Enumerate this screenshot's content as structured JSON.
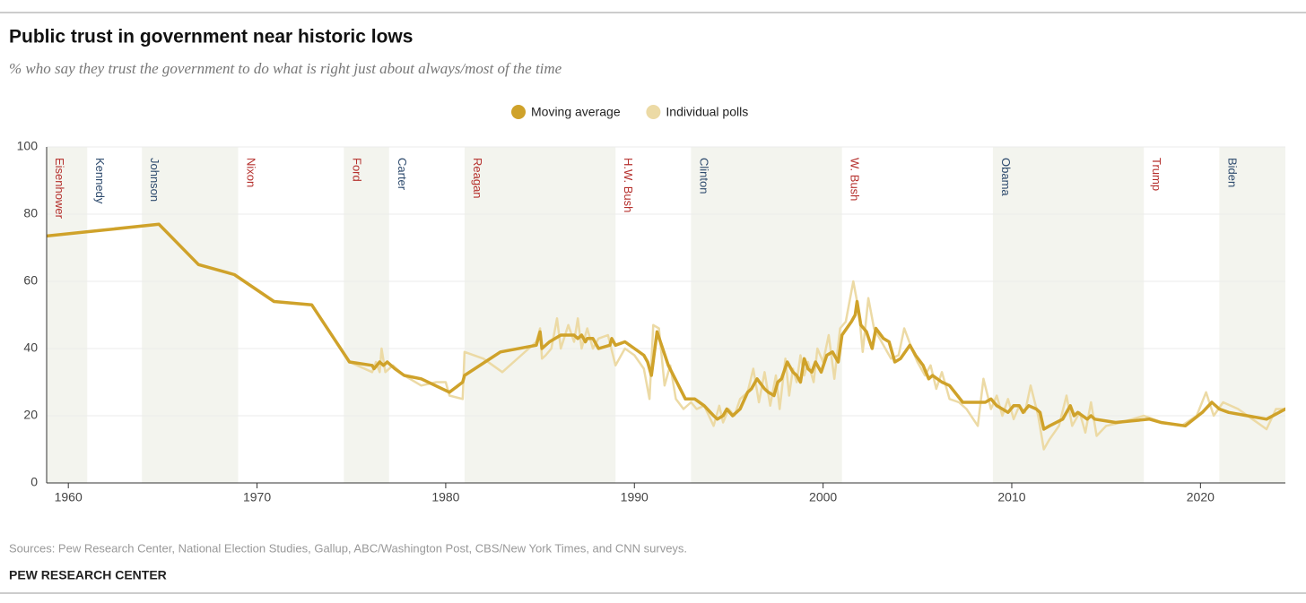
{
  "chart_data": {
    "type": "line",
    "title": "Public trust in government near historic lows",
    "subtitle": "% who say they trust the government to do what is right just about always/most of the time",
    "source": "Sources: Pew Research Center, National Election Studies, Gallup, ABC/Washington Post, CBS/New York Times, and CNN surveys.",
    "credit": "PEW RESEARCH CENTER",
    "xlim": [
      1958.85,
      2024.5
    ],
    "xticks": [
      1960,
      1970,
      1980,
      1990,
      2000,
      2010,
      2020
    ],
    "ylim": [
      0,
      100
    ],
    "yticks": [
      0,
      20,
      40,
      60,
      80,
      100
    ],
    "grid": true,
    "legend": "top",
    "presidents": [
      {
        "name": "Eisenhower",
        "start": 1953,
        "end": 1961,
        "color": "#b5302d",
        "shaded": true
      },
      {
        "name": "Kennedy",
        "start": 1961,
        "end": 1963.9,
        "color": "#2d4a6d",
        "shaded": false
      },
      {
        "name": "Johnson",
        "start": 1963.9,
        "end": 1969,
        "color": "#2d4a6d",
        "shaded": true
      },
      {
        "name": "Nixon",
        "start": 1969,
        "end": 1974.6,
        "color": "#b5302d",
        "shaded": false
      },
      {
        "name": "Ford",
        "start": 1974.6,
        "end": 1977,
        "color": "#b5302d",
        "shaded": true
      },
      {
        "name": "Carter",
        "start": 1977,
        "end": 1981,
        "color": "#2d4a6d",
        "shaded": false
      },
      {
        "name": "Reagan",
        "start": 1981,
        "end": 1989,
        "color": "#b5302d",
        "shaded": true
      },
      {
        "name": "H.W. Bush",
        "start": 1989,
        "end": 1993,
        "color": "#b5302d",
        "shaded": false
      },
      {
        "name": "Clinton",
        "start": 1993,
        "end": 2001,
        "color": "#2d4a6d",
        "shaded": true
      },
      {
        "name": "W. Bush",
        "start": 2001,
        "end": 2009,
        "color": "#b5302d",
        "shaded": false
      },
      {
        "name": "Obama",
        "start": 2009,
        "end": 2017,
        "color": "#2d4a6d",
        "shaded": true
      },
      {
        "name": "Trump",
        "start": 2017,
        "end": 2021,
        "color": "#b5302d",
        "shaded": false
      },
      {
        "name": "Biden",
        "start": 2021,
        "end": 2025,
        "color": "#2d4a6d",
        "shaded": true
      }
    ],
    "series": [
      {
        "name": "Moving average",
        "color": "#cfa22a",
        "x": [
          1958,
          1964.8,
          1966.9,
          1968.8,
          1970.9,
          1972.9,
          1974.9,
          1976.1,
          1976.2,
          1976.5,
          1976.7,
          1976.9,
          1977.3,
          1977.8,
          1978.7,
          1980.2,
          1980.9,
          1981.0,
          1982.9,
          1984.8,
          1985.0,
          1985.1,
          1985.5,
          1986.1,
          1986.8,
          1987.0,
          1987.2,
          1987.4,
          1987.5,
          1987.8,
          1988.1,
          1988.7,
          1988.8,
          1989.0,
          1989.5,
          1990.0,
          1990.5,
          1990.7,
          1990.9,
          1991.2,
          1991.8,
          1992.7,
          1993.2,
          1993.7,
          1994.2,
          1994.4,
          1994.7,
          1994.9,
          1995.2,
          1995.4,
          1995.6,
          1996.0,
          1996.2,
          1996.5,
          1996.9,
          1997.1,
          1997.4,
          1997.6,
          1997.8,
          1998.1,
          1998.4,
          1998.6,
          1998.8,
          1999.0,
          1999.2,
          1999.4,
          1999.6,
          1999.9,
          2000.2,
          2000.5,
          2000.8,
          2001.0,
          2001.5,
          2001.7,
          2001.8,
          2002.0,
          2002.3,
          2002.6,
          2002.8,
          2003.2,
          2003.5,
          2003.8,
          2004.1,
          2004.6,
          2004.9,
          2005.3,
          2005.6,
          2005.8,
          2006.3,
          2006.7,
          2007.4,
          2007.9,
          2008.6,
          2008.9,
          2009.2,
          2009.5,
          2009.8,
          2010.1,
          2010.4,
          2010.6,
          2010.9,
          2011.3,
          2011.5,
          2011.7,
          2012.0,
          2012.7,
          2012.8,
          2013.1,
          2013.3,
          2013.5,
          2014.0,
          2014.2,
          2014.4,
          2015.5,
          2017.3,
          2017.9,
          2019.2,
          2020.1,
          2020.6,
          2021.0,
          2021.5,
          2023.5,
          2024.5
        ],
        "values": [
          73,
          77,
          65,
          62,
          54,
          53,
          36,
          35,
          34,
          36,
          35,
          36,
          34,
          32,
          31,
          27,
          30,
          32,
          39,
          41,
          45,
          40,
          42,
          44,
          44,
          43,
          44,
          42,
          43,
          43,
          40,
          41,
          43,
          41,
          42,
          40,
          38,
          36,
          32,
          45,
          35,
          25,
          25,
          23,
          20,
          19,
          20,
          22,
          20,
          21,
          22,
          27,
          28,
          31,
          28,
          27,
          26,
          30,
          31,
          36,
          33,
          32,
          30,
          37,
          34,
          33,
          36,
          33,
          38,
          39,
          36,
          44,
          48,
          50,
          54,
          47,
          45,
          40,
          46,
          43,
          42,
          36,
          37,
          41,
          38,
          35,
          31,
          32,
          30,
          29,
          24,
          24,
          24,
          25,
          23,
          22,
          21,
          23,
          23,
          21,
          23,
          22,
          21,
          16,
          17,
          19,
          20,
          23,
          20,
          21,
          19,
          20,
          19,
          18,
          19,
          18,
          17,
          21,
          24,
          22,
          21,
          19,
          22
        ]
      },
      {
        "name": "Individual polls",
        "color": "#ecdaa5",
        "x": [
          1958,
          1964.8,
          1966.9,
          1968.8,
          1970.9,
          1972.9,
          1974.9,
          1976.1,
          1976.3,
          1976.5,
          1976.6,
          1976.8,
          1977.2,
          1977.8,
          1978.7,
          1979.5,
          1980.0,
          1980.2,
          1980.9,
          1981.0,
          1982.0,
          1983.0,
          1984.0,
          1984.8,
          1985.0,
          1985.1,
          1985.3,
          1985.6,
          1985.9,
          1986.1,
          1986.5,
          1986.8,
          1987.0,
          1987.2,
          1987.5,
          1987.8,
          1988.1,
          1988.6,
          1989.0,
          1989.5,
          1990.0,
          1990.5,
          1990.8,
          1991.0,
          1991.3,
          1991.6,
          1991.9,
          1992.2,
          1992.6,
          1993.0,
          1993.3,
          1993.7,
          1994.2,
          1994.5,
          1994.7,
          1995.0,
          1995.3,
          1995.6,
          1996.0,
          1996.3,
          1996.6,
          1996.9,
          1997.2,
          1997.5,
          1997.7,
          1998.0,
          1998.2,
          1998.4,
          1998.6,
          1998.8,
          1999.0,
          1999.2,
          1999.5,
          1999.7,
          2000.0,
          2000.3,
          2000.6,
          2000.9,
          2001.2,
          2001.6,
          2001.9,
          2002.1,
          2002.4,
          2002.7,
          2003.0,
          2003.3,
          2003.6,
          2004.0,
          2004.3,
          2004.7,
          2005.0,
          2005.4,
          2005.7,
          2006.0,
          2006.3,
          2006.7,
          2007.2,
          2007.6,
          2008.2,
          2008.5,
          2008.9,
          2009.2,
          2009.5,
          2009.8,
          2010.1,
          2010.4,
          2010.7,
          2011.0,
          2011.4,
          2011.7,
          2012.0,
          2012.5,
          2012.9,
          2013.2,
          2013.6,
          2013.9,
          2014.2,
          2014.5,
          2015.0,
          2015.8,
          2017.0,
          2018.0,
          2019.0,
          2019.8,
          2020.3,
          2020.7,
          2021.2,
          2022.0,
          2023.5,
          2024.0,
          2024.5
        ],
        "values": [
          73,
          77,
          65,
          62,
          54,
          53,
          36,
          33,
          36,
          33,
          40,
          33,
          35,
          32,
          29,
          30,
          30,
          26,
          25,
          39,
          37,
          33,
          38,
          42,
          46,
          37,
          38,
          40,
          49,
          40,
          47,
          42,
          49,
          40,
          46,
          40,
          43,
          44,
          35,
          40,
          38,
          34,
          25,
          47,
          46,
          29,
          35,
          25,
          22,
          24,
          22,
          23,
          17,
          23,
          18,
          22,
          20,
          25,
          27,
          34,
          24,
          33,
          23,
          32,
          22,
          37,
          26,
          34,
          30,
          38,
          32,
          36,
          30,
          40,
          36,
          44,
          31,
          46,
          48,
          60,
          51,
          39,
          55,
          46,
          43,
          40,
          37,
          38,
          46,
          40,
          36,
          32,
          35,
          28,
          33,
          25,
          24,
          22,
          17,
          31,
          22,
          26,
          20,
          25,
          19,
          23,
          21,
          29,
          20,
          10,
          13,
          17,
          26,
          17,
          21,
          15,
          24,
          14,
          17,
          18,
          20,
          18,
          17,
          20,
          27,
          20,
          24,
          22,
          16,
          22,
          22
        ]
      }
    ]
  }
}
